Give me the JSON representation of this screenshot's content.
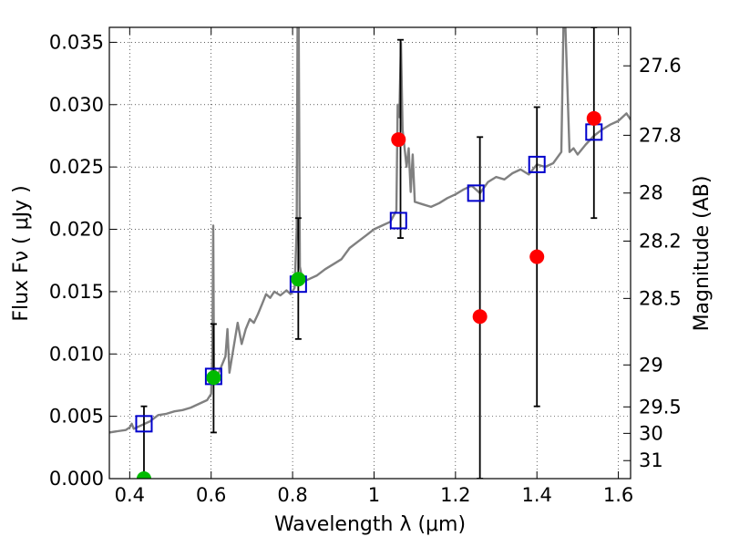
{
  "chart_data": {
    "type": "scatter",
    "xlabel": "Wavelength  λ (μm)",
    "ylabel": "Flux  Fν  ( μJy )",
    "ylabel_right": "Magnitude (AB)",
    "xlim": [
      0.35,
      1.63
    ],
    "ylim": [
      0.0,
      0.0362
    ],
    "grid": true,
    "x_ticks": [
      0.4,
      0.6,
      0.8,
      1.0,
      1.2,
      1.4,
      1.6
    ],
    "x_tick_labels": [
      "0.4",
      "0.6",
      "0.8",
      "1",
      "1.2",
      "1.4",
      "1.6"
    ],
    "y_ticks": [
      0.0,
      0.005,
      0.01,
      0.015,
      0.02,
      0.025,
      0.03,
      0.035
    ],
    "y_tick_labels": [
      "0.000",
      "0.005",
      "0.010",
      "0.015",
      "0.020",
      "0.025",
      "0.030",
      "0.035"
    ],
    "mag_ticks": [
      27.6,
      27.8,
      28,
      28.2,
      28.5,
      29,
      29.5,
      30,
      31
    ],
    "mag_tick_labels": [
      "27.6",
      "27.8",
      "28",
      "28.2",
      "28.5",
      "29",
      "29.5",
      "30",
      "31"
    ],
    "colors": {
      "template": "#808080",
      "model_photometry": "#0000cc",
      "detections": "#00bb00",
      "nondetections": "#ff0000",
      "errorbars": "#000000"
    },
    "series": [
      {
        "name": "model_photometry",
        "marker": "open-square",
        "points": [
          {
            "x": 0.435,
            "y": 0.0044
          },
          {
            "x": 0.606,
            "y": 0.0082
          },
          {
            "x": 0.814,
            "y": 0.0156
          },
          {
            "x": 1.06,
            "y": 0.0207
          },
          {
            "x": 1.25,
            "y": 0.0229
          },
          {
            "x": 1.4,
            "y": 0.0252
          },
          {
            "x": 1.54,
            "y": 0.0278
          }
        ]
      },
      {
        "name": "detections",
        "marker": "filled-circle",
        "points": [
          {
            "x": 0.435,
            "y": 0.0
          },
          {
            "x": 0.606,
            "y": 0.0081
          },
          {
            "x": 0.814,
            "y": 0.016
          }
        ]
      },
      {
        "name": "nondetections",
        "marker": "filled-circle",
        "points": [
          {
            "x": 1.06,
            "y": 0.0272
          },
          {
            "x": 1.26,
            "y": 0.013
          },
          {
            "x": 1.4,
            "y": 0.0178
          },
          {
            "x": 1.54,
            "y": 0.0289
          }
        ]
      }
    ],
    "errorbars": [
      {
        "x": 0.435,
        "low": 0.0,
        "high": 0.0058
      },
      {
        "x": 0.606,
        "low": 0.0037,
        "high": 0.0124
      },
      {
        "x": 0.814,
        "low": 0.0112,
        "high": 0.0209
      },
      {
        "x": 1.065,
        "low": 0.0193,
        "high": 0.0352
      },
      {
        "x": 1.26,
        "low": 0.0,
        "high": 0.0274
      },
      {
        "x": 1.4,
        "low": 0.0058,
        "high": 0.0298
      },
      {
        "x": 1.54,
        "low": 0.0209,
        "high": 0.0362
      }
    ],
    "template_spectrum": [
      [
        0.35,
        0.0037
      ],
      [
        0.37,
        0.0038
      ],
      [
        0.39,
        0.0039
      ],
      [
        0.4,
        0.0041
      ],
      [
        0.405,
        0.0044
      ],
      [
        0.41,
        0.004
      ],
      [
        0.43,
        0.0043
      ],
      [
        0.45,
        0.0046
      ],
      [
        0.47,
        0.0051
      ],
      [
        0.49,
        0.0052
      ],
      [
        0.51,
        0.0054
      ],
      [
        0.53,
        0.0055
      ],
      [
        0.55,
        0.0057
      ],
      [
        0.57,
        0.006
      ],
      [
        0.59,
        0.0063
      ],
      [
        0.6,
        0.0068
      ],
      [
        0.603,
        0.01
      ],
      [
        0.605,
        0.0203
      ],
      [
        0.607,
        0.009
      ],
      [
        0.615,
        0.0082
      ],
      [
        0.625,
        0.009
      ],
      [
        0.635,
        0.0098
      ],
      [
        0.64,
        0.012
      ],
      [
        0.645,
        0.0085
      ],
      [
        0.655,
        0.0105
      ],
      [
        0.665,
        0.0125
      ],
      [
        0.675,
        0.0108
      ],
      [
        0.685,
        0.012
      ],
      [
        0.695,
        0.0128
      ],
      [
        0.705,
        0.0125
      ],
      [
        0.715,
        0.0132
      ],
      [
        0.725,
        0.014
      ],
      [
        0.735,
        0.0148
      ],
      [
        0.745,
        0.0145
      ],
      [
        0.755,
        0.015
      ],
      [
        0.77,
        0.0147
      ],
      [
        0.785,
        0.0151
      ],
      [
        0.795,
        0.0148
      ],
      [
        0.805,
        0.0153
      ],
      [
        0.81,
        0.02
      ],
      [
        0.812,
        0.0362
      ],
      [
        0.815,
        0.0362
      ],
      [
        0.818,
        0.017
      ],
      [
        0.825,
        0.0158
      ],
      [
        0.84,
        0.016
      ],
      [
        0.86,
        0.0163
      ],
      [
        0.88,
        0.0168
      ],
      [
        0.9,
        0.0172
      ],
      [
        0.92,
        0.0176
      ],
      [
        0.94,
        0.0185
      ],
      [
        0.96,
        0.019
      ],
      [
        0.98,
        0.0195
      ],
      [
        1.0,
        0.02
      ],
      [
        1.02,
        0.0203
      ],
      [
        1.04,
        0.0206
      ],
      [
        1.055,
        0.0215
      ],
      [
        1.058,
        0.03
      ],
      [
        1.062,
        0.029
      ],
      [
        1.066,
        0.035
      ],
      [
        1.07,
        0.028
      ],
      [
        1.08,
        0.025
      ],
      [
        1.085,
        0.0265
      ],
      [
        1.09,
        0.023
      ],
      [
        1.095,
        0.026
      ],
      [
        1.1,
        0.0222
      ],
      [
        1.12,
        0.022
      ],
      [
        1.14,
        0.0218
      ],
      [
        1.16,
        0.0221
      ],
      [
        1.18,
        0.0225
      ],
      [
        1.2,
        0.0228
      ],
      [
        1.22,
        0.0232
      ],
      [
        1.24,
        0.0235
      ],
      [
        1.26,
        0.0229
      ],
      [
        1.28,
        0.0238
      ],
      [
        1.3,
        0.0242
      ],
      [
        1.32,
        0.024
      ],
      [
        1.34,
        0.0245
      ],
      [
        1.36,
        0.0248
      ],
      [
        1.38,
        0.0244
      ],
      [
        1.4,
        0.0252
      ],
      [
        1.42,
        0.025
      ],
      [
        1.44,
        0.0253
      ],
      [
        1.46,
        0.0262
      ],
      [
        1.465,
        0.0362
      ],
      [
        1.47,
        0.0362
      ],
      [
        1.48,
        0.0262
      ],
      [
        1.49,
        0.0265
      ],
      [
        1.5,
        0.026
      ],
      [
        1.52,
        0.0268
      ],
      [
        1.54,
        0.0275
      ],
      [
        1.56,
        0.028
      ],
      [
        1.58,
        0.0284
      ],
      [
        1.6,
        0.0287
      ],
      [
        1.62,
        0.0293
      ],
      [
        1.63,
        0.0288
      ]
    ]
  }
}
